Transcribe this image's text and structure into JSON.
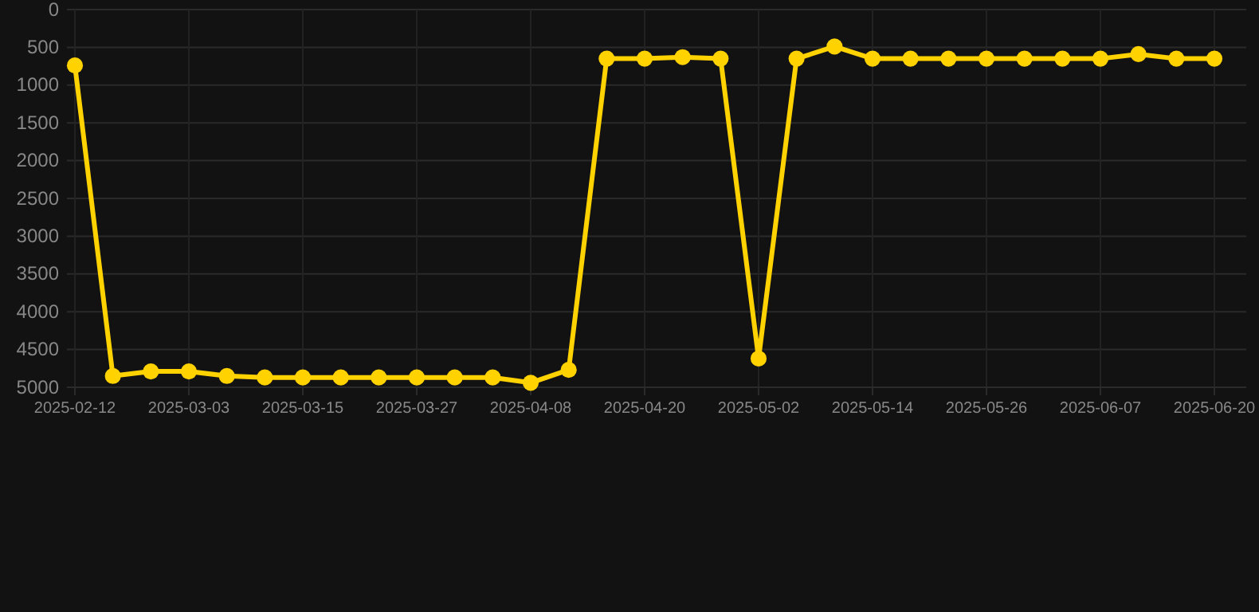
{
  "chart_data": {
    "type": "line",
    "categories": [
      "2025-02-12",
      null,
      null,
      "2025-03-03",
      null,
      null,
      "2025-03-15",
      null,
      null,
      "2025-03-27",
      null,
      null,
      "2025-04-08",
      null,
      null,
      "2025-04-20",
      null,
      null,
      "2025-05-02",
      null,
      null,
      "2025-05-14",
      null,
      null,
      "2025-05-26",
      null,
      null,
      "2025-06-07",
      null,
      null,
      "2025-06-20"
    ],
    "series": [
      {
        "color": "#ffd200",
        "values": [
          740,
          4850,
          4790,
          4790,
          4850,
          4870,
          4870,
          4870,
          4870,
          4870,
          4870,
          4870,
          4940,
          4770,
          650,
          650,
          630,
          650,
          4620,
          650,
          490,
          650,
          650,
          650,
          650,
          650,
          650,
          650,
          590,
          650,
          650
        ]
      }
    ],
    "ylim": [
      5000,
      0
    ],
    "yticks": [
      0,
      500,
      1000,
      1500,
      2000,
      2500,
      3000,
      3500,
      4000,
      4500,
      5000
    ],
    "grid": true,
    "marker": "circle",
    "line_style": "solid"
  }
}
